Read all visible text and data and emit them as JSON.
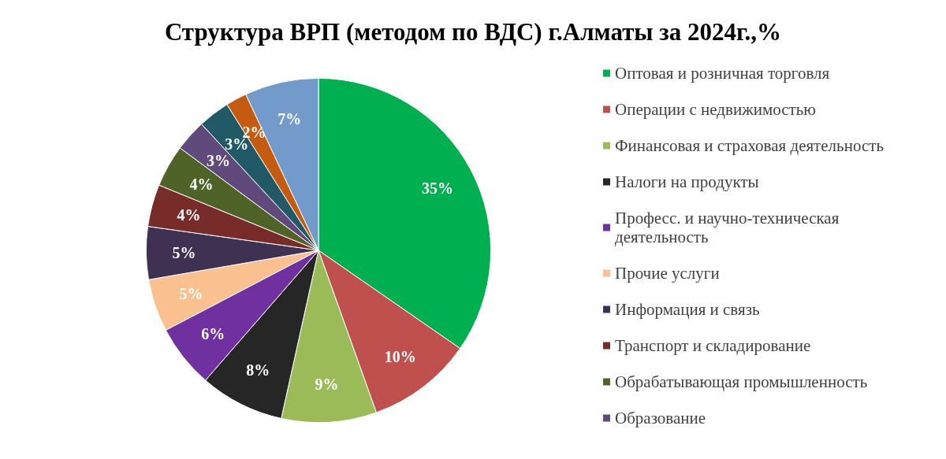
{
  "chart_data": {
    "type": "pie",
    "title": "Структура ВРП (методом по ВДС) г.Алматы за 2024г.,%",
    "categories": [
      "Оптовая и розничная торговля",
      "Операции с недвижимостью",
      "Финансовая и страховая деятельность",
      "Налоги на продукты",
      "Професс. и научно-техническая деятельность",
      "Прочие услуги",
      "Информация и связь",
      "Транспорт и складирование",
      "Обрабатывающая промышленность",
      "Образование",
      null,
      null,
      null
    ],
    "values": [
      35,
      10,
      9,
      8,
      6,
      5,
      5,
      4,
      4,
      3,
      3,
      2,
      7
    ],
    "value_labels": [
      "35%",
      "10%",
      "9%",
      "8%",
      "6%",
      "5%",
      "5%",
      "4%",
      "4%",
      "3%",
      "3%",
      "2%",
      "7%"
    ],
    "colors": [
      "#00b050",
      "#c0504d",
      "#9bbb59",
      "#262626",
      "#7030a0",
      "#fac090",
      "#3f3151",
      "#772c2a",
      "#4f6228",
      "#604a7b",
      "#215967",
      "#c55a11",
      "#729aca"
    ],
    "legend": "right"
  }
}
